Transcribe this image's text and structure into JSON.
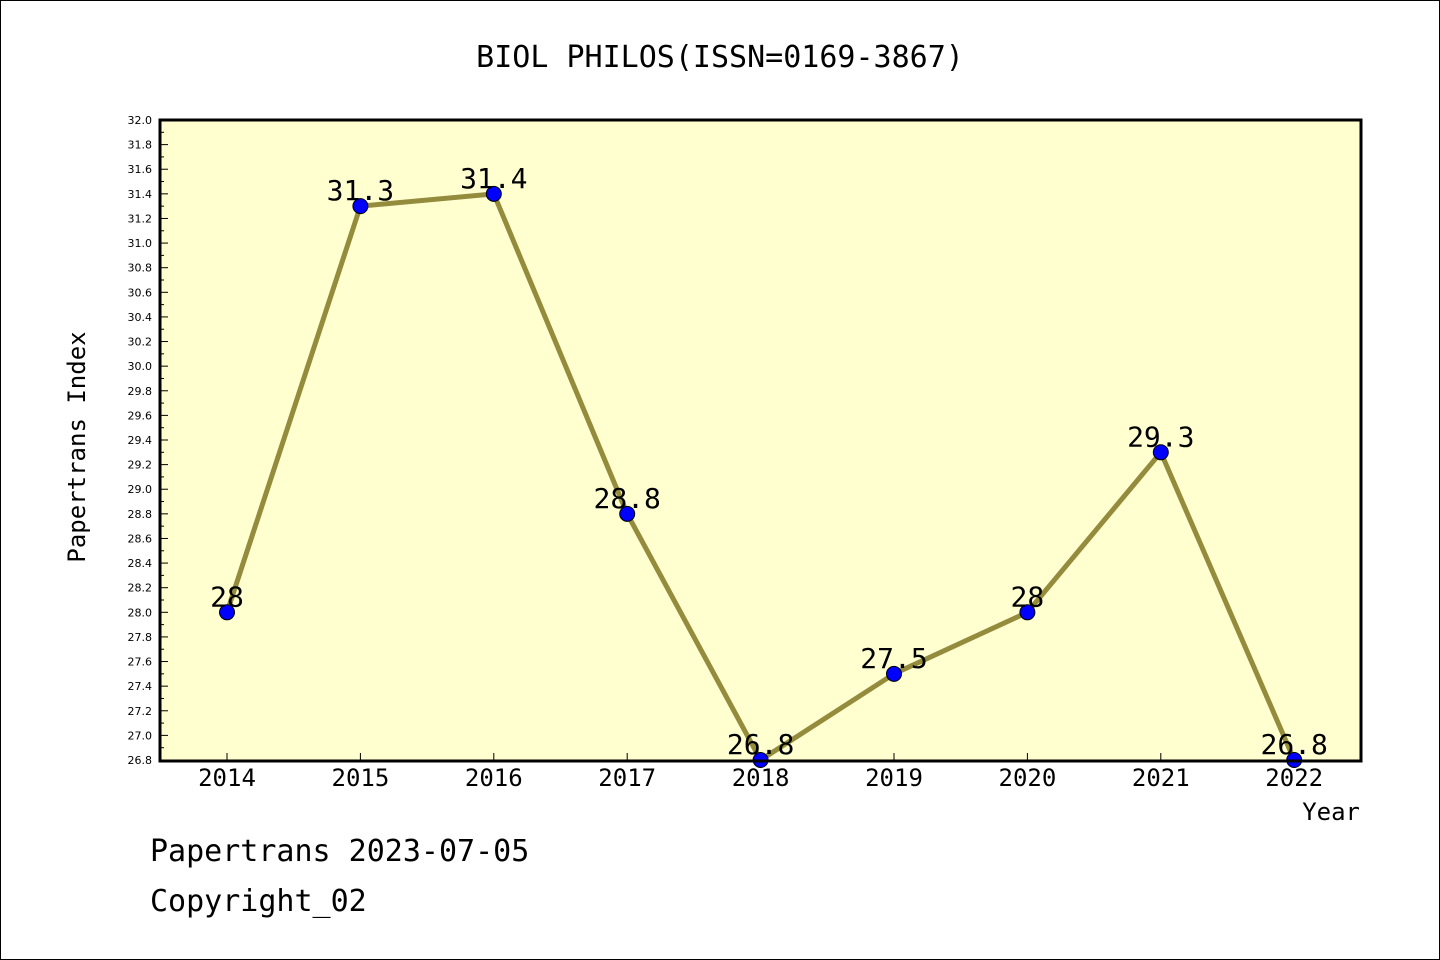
{
  "footer": {
    "line1": "Papertrans 2023-07-05",
    "line2": "Copyright_02"
  },
  "colors": {
    "plot_background": "#ffffd0",
    "line": "#948b3d",
    "marker": "#0000ff"
  },
  "chart_data": {
    "type": "line",
    "title": "BIOL PHILOS(ISSN=0169-3867)",
    "xlabel": "Year",
    "ylabel": "Papertrans Index",
    "categories": [
      "2014",
      "2015",
      "2016",
      "2017",
      "2018",
      "2019",
      "2020",
      "2021",
      "2022"
    ],
    "series": [
      {
        "values": [
          28,
          31.3,
          31.4,
          28.8,
          26.8,
          27.5,
          28,
          29.3,
          26.8
        ],
        "labels": [
          "28",
          "31.3",
          "31.4",
          "28.8",
          "26.8",
          "27.5",
          "28",
          "29.3",
          "26.8"
        ]
      }
    ],
    "ylim": [
      26.8,
      32.0
    ],
    "yticks": [
      "26.8",
      "27.0",
      "27.2",
      "27.4",
      "27.6",
      "27.8",
      "28.0",
      "28.2",
      "28.4",
      "28.6",
      "28.8",
      "29.0",
      "29.2",
      "29.4",
      "29.6",
      "29.8",
      "30.0",
      "30.2",
      "30.4",
      "30.6",
      "30.8",
      "31.0",
      "31.2",
      "31.4",
      "31.6",
      "31.8",
      "32.0"
    ],
    "grid": false,
    "legend": "none"
  }
}
